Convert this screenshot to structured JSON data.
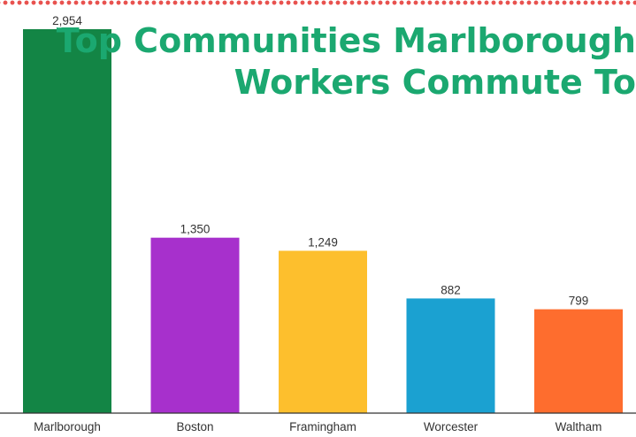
{
  "chart_data": {
    "type": "bar",
    "title_lines": [
      "Top Communities Marlborough",
      "Workers Commute To"
    ],
    "categories": [
      "Marlborough",
      "Boston",
      "Framingham",
      "Worcester",
      "Waltham"
    ],
    "values": [
      2954,
      1350,
      1249,
      882,
      799
    ],
    "value_labels": [
      "2,954",
      "1,350",
      "1,249",
      "882",
      "799"
    ],
    "colors": [
      "#138545",
      "#a730cc",
      "#fdbf2d",
      "#1ba1d1",
      "#fe6d2e"
    ],
    "title_color": "#1ba870",
    "border_color": "#e8524f",
    "ylim": [
      0,
      2954
    ],
    "grid": false,
    "legend": "none"
  }
}
